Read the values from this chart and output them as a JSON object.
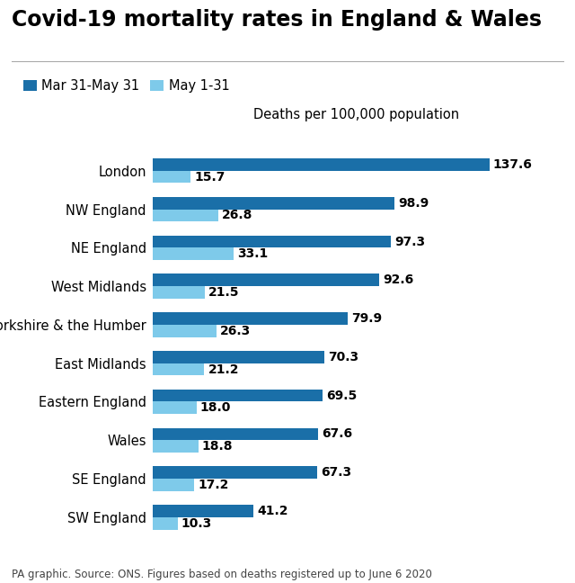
{
  "title": "Covid-19 mortality rates in England & Wales",
  "subtitle": "Deaths per 100,000 population",
  "footnote": "PA graphic. Source: ONS. Figures based on deaths registered up to June 6 2020",
  "legend": [
    "Mar 31-May 31",
    "May 1-31"
  ],
  "color_dark": "#1a6fa8",
  "color_light": "#7ecaea",
  "categories": [
    "London",
    "NW England",
    "NE England",
    "West Midlands",
    "Yorkshire & the Humber",
    "East Midlands",
    "Eastern England",
    "Wales",
    "SE England",
    "SW England"
  ],
  "values_dark": [
    137.6,
    98.9,
    97.3,
    92.6,
    79.9,
    70.3,
    69.5,
    67.6,
    67.3,
    41.2
  ],
  "values_light": [
    15.7,
    26.8,
    33.1,
    21.5,
    26.3,
    21.2,
    18.0,
    18.8,
    17.2,
    10.3
  ],
  "xlim": [
    0,
    155
  ],
  "bar_height": 0.32,
  "background_color": "#ffffff",
  "title_fontsize": 17,
  "label_fontsize": 10.5,
  "subtitle_fontsize": 10.5,
  "footnote_fontsize": 8.5,
  "value_fontsize": 10
}
